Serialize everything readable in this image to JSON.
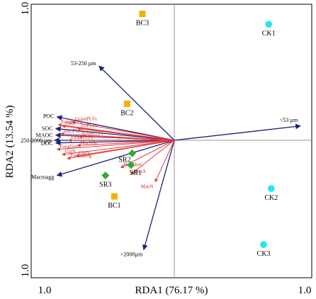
{
  "chart_data": {
    "type": "scatter",
    "subtype": "rda-biplot",
    "xlabel": "RDA1 (76.17 %)",
    "ylabel": "RDA2 (13.54 %)",
    "xlim": [
      -1.0,
      1.0
    ],
    "ylim": [
      -1.0,
      1.0
    ],
    "x_tick_labels": [
      "1.0",
      "1.0"
    ],
    "y_tick_labels": [
      "1.0",
      "1.0"
    ],
    "grid": false,
    "zero_lines": true,
    "colors": {
      "BC": "#f5b000",
      "CK": "#22e6f0",
      "SR": "#33aa33",
      "env_arrow": "#1a237e",
      "micro_arrow": "#e23a3a",
      "zero_line": "#999999"
    },
    "site_scores": [
      {
        "label": "BC3",
        "group": "BC",
        "x": -0.25,
        "y": 0.97
      },
      {
        "label": "BC2",
        "group": "BC",
        "x": -0.37,
        "y": 0.28
      },
      {
        "label": "BC1",
        "group": "BC",
        "x": -0.47,
        "y": -0.43
      },
      {
        "label": "CK1",
        "group": "CK",
        "x": 0.74,
        "y": 0.89
      },
      {
        "label": "CK2",
        "group": "CK",
        "x": 0.76,
        "y": -0.37
      },
      {
        "label": "CK3",
        "group": "CK",
        "x": 0.7,
        "y": -0.8
      },
      {
        "label": "SR2",
        "group": "SR",
        "x": -0.33,
        "y": -0.1
      },
      {
        "label": "SR1",
        "group": "SR",
        "x": -0.34,
        "y": -0.19
      },
      {
        "label": "SR3",
        "group": "SR",
        "x": -0.54,
        "y": -0.27
      }
    ],
    "env_vectors": [
      {
        "label": "53-250 µm",
        "x": -0.59,
        "y": 0.57
      },
      {
        "label": "<53 µm",
        "x": 0.99,
        "y": 0.11
      },
      {
        "label": "POC",
        "x": -0.92,
        "y": 0.18
      },
      {
        "label": "SOC",
        "x": -0.93,
        "y": 0.09
      },
      {
        "label": "MAOC",
        "x": -0.93,
        "y": 0.04
      },
      {
        "label": "250-2000 µm",
        "x": -0.94,
        "y": 0.0
      },
      {
        "label": "DOC",
        "x": -0.93,
        "y": -0.02
      },
      {
        "label": "Macroagg",
        "x": -0.92,
        "y": -0.27
      },
      {
        "label": ">2000µm",
        "x": -0.24,
        "y": -0.84
      }
    ],
    "microbial_vectors": [
      {
        "label": "GramPLFs",
        "x": -0.8,
        "y": 0.14
      },
      {
        "label": "FungPLFs",
        "x": -0.91,
        "y": 0.12
      },
      {
        "label": "AMF",
        "x": -0.88,
        "y": 0.11
      },
      {
        "label": "TotPLFs",
        "x": -0.76,
        "y": 0.09
      },
      {
        "label": "BactPLFs",
        "x": -0.89,
        "y": 0.05
      },
      {
        "label": "ActinPLFs",
        "x": -0.75,
        "y": 0.03
      },
      {
        "label": "GramPLFs",
        "x": -0.83,
        "y": 0.0
      },
      {
        "label": "MurNAc",
        "x": -0.76,
        "y": -0.04
      },
      {
        "label": "FungDerC",
        "x": -0.92,
        "y": -0.07
      },
      {
        "label": "GalN",
        "x": -0.88,
        "y": -0.11
      },
      {
        "label": "GluN",
        "x": -0.77,
        "y": -0.12
      },
      {
        "label": "TotAmnSg",
        "x": -0.84,
        "y": -0.14
      },
      {
        "label": "BactDerC",
        "x": -0.42,
        "y": -0.21
      },
      {
        "label": "MurA",
        "x": -0.34,
        "y": -0.26
      },
      {
        "label": "ManN",
        "x": -0.15,
        "y": -0.32
      }
    ]
  }
}
